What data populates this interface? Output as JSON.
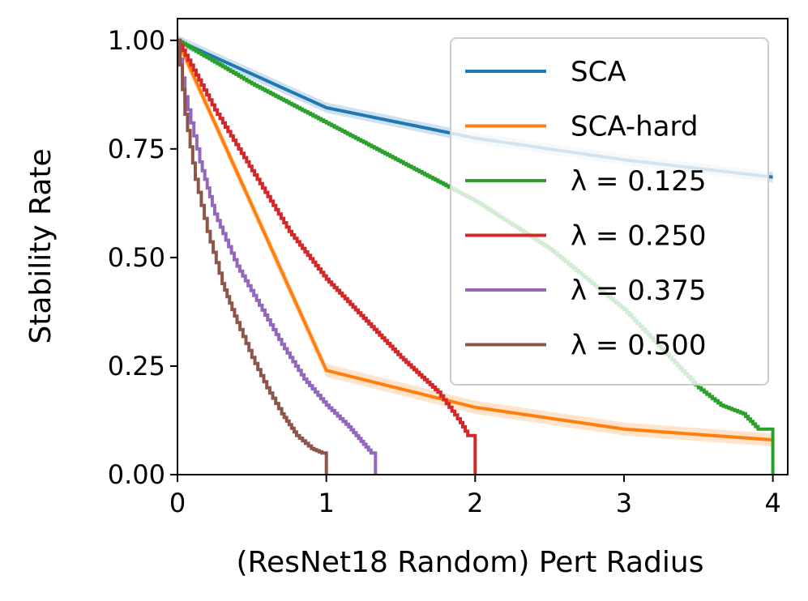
{
  "chart_data": {
    "type": "line",
    "title": "",
    "xlabel": "(ResNet18 Random) Pert Radius",
    "ylabel": "Stability Rate",
    "xlim": [
      0,
      4.1
    ],
    "ylim": [
      0,
      1.05
    ],
    "xticks": [
      0,
      1,
      2,
      3,
      4
    ],
    "xtick_labels": [
      "0",
      "1",
      "2",
      "3",
      "4"
    ],
    "yticks": [
      0,
      0.25,
      0.5,
      0.75,
      1.0
    ],
    "ytick_labels": [
      "0.00",
      "0.25",
      "0.50",
      "0.75",
      "1.00"
    ],
    "grid": false,
    "legend_position": "top-right",
    "series": [
      {
        "name": "SCA",
        "label_text": "SCA",
        "color": "#1f77b4",
        "style": "linear",
        "band": 0.012,
        "points": [
          [
            0,
            1.0
          ],
          [
            1,
            0.845
          ],
          [
            2,
            0.775
          ],
          [
            3,
            0.725
          ],
          [
            4,
            0.685
          ]
        ]
      },
      {
        "name": "SCA-hard",
        "label_text": "SCA-hard",
        "color": "#ff7f0e",
        "style": "linear",
        "band": 0.015,
        "points": [
          [
            0,
            1.0
          ],
          [
            1,
            0.24
          ],
          [
            2,
            0.155
          ],
          [
            3,
            0.105
          ],
          [
            4,
            0.08
          ]
        ]
      },
      {
        "name": "lambda=0.125",
        "label_text": "λ = 0.125",
        "color": "#2ca02c",
        "style": "step",
        "radius": 4.0,
        "points": [
          [
            0,
            1.0
          ],
          [
            0.5,
            0.9
          ],
          [
            1.0,
            0.81
          ],
          [
            1.5,
            0.72
          ],
          [
            2.0,
            0.63
          ],
          [
            2.5,
            0.52
          ],
          [
            3.0,
            0.38
          ],
          [
            3.5,
            0.2
          ],
          [
            3.65,
            0.16
          ],
          [
            3.8,
            0.14
          ],
          [
            3.9,
            0.105
          ],
          [
            4.0,
            0.105
          ]
        ]
      },
      {
        "name": "lambda=0.250",
        "label_text": "λ = 0.250",
        "color": "#d62728",
        "style": "step",
        "radius": 2.0,
        "points": [
          [
            0,
            1.0
          ],
          [
            0.25,
            0.84
          ],
          [
            0.5,
            0.7
          ],
          [
            0.75,
            0.56
          ],
          [
            1.0,
            0.45
          ],
          [
            1.25,
            0.36
          ],
          [
            1.5,
            0.27
          ],
          [
            1.75,
            0.19
          ],
          [
            1.9,
            0.12
          ],
          [
            1.95,
            0.09
          ],
          [
            2.0,
            0.09
          ]
        ]
      },
      {
        "name": "lambda=0.375",
        "label_text": "λ = 0.375",
        "color": "#9467bd",
        "style": "step",
        "radius": 1.33,
        "points": [
          [
            0,
            1.0
          ],
          [
            0.05,
            0.87
          ],
          [
            0.15,
            0.72
          ],
          [
            0.25,
            0.6
          ],
          [
            0.4,
            0.48
          ],
          [
            0.55,
            0.39
          ],
          [
            0.7,
            0.3
          ],
          [
            0.85,
            0.22
          ],
          [
            1.0,
            0.16
          ],
          [
            1.15,
            0.11
          ],
          [
            1.25,
            0.07
          ],
          [
            1.3,
            0.05
          ],
          [
            1.33,
            0.05
          ]
        ]
      },
      {
        "name": "lambda=0.500",
        "label_text": "λ = 0.500",
        "color": "#8c564b",
        "style": "step",
        "radius": 1.0,
        "points": [
          [
            0,
            1.0
          ],
          [
            0.05,
            0.83
          ],
          [
            0.12,
            0.68
          ],
          [
            0.2,
            0.56
          ],
          [
            0.3,
            0.44
          ],
          [
            0.4,
            0.35
          ],
          [
            0.5,
            0.27
          ],
          [
            0.6,
            0.2
          ],
          [
            0.7,
            0.14
          ],
          [
            0.8,
            0.09
          ],
          [
            0.9,
            0.06
          ],
          [
            0.97,
            0.05
          ],
          [
            1.0,
            0.05
          ]
        ]
      }
    ]
  }
}
